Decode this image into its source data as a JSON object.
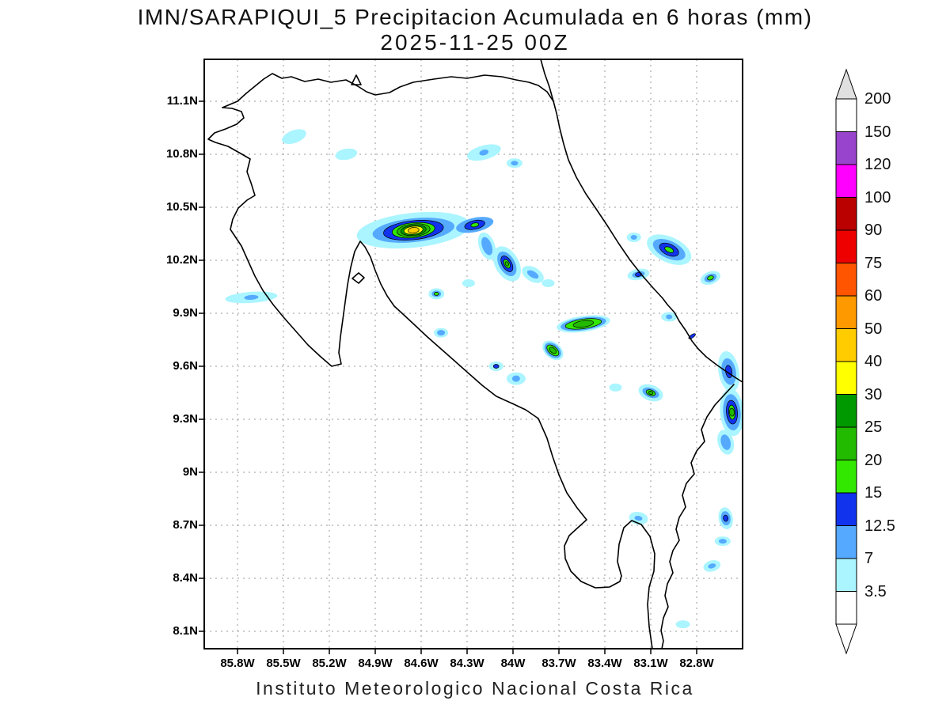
{
  "header": {
    "title": "IMN/SARAPIQUI_5 Precipitacion Acumulada en 6 horas (mm)",
    "subtitle": "2025-11-25 00Z"
  },
  "footer": {
    "text": "Instituto Meteorologico Nacional Costa Rica"
  },
  "chart_data": {
    "type": "heatmap",
    "subtype": "precipitation-contour-map",
    "title": "IMN/SARAPIQUI_5 Precipitacion Acumulada en 6 horas (mm)",
    "valid_time": "2025-11-25 00Z",
    "units": "mm",
    "region": "Costa Rica",
    "grid": "dashed",
    "legend_position": "right-colorbar",
    "axes": {
      "x_ticks": [
        "85.8W",
        "85.5W",
        "85.2W",
        "84.9W",
        "84.6W",
        "84.3W",
        "84W",
        "83.7W",
        "83.4W",
        "83.1W",
        "82.8W"
      ],
      "y_ticks": [
        "11.1N",
        "10.8N",
        "10.5N",
        "10.2N",
        "9.9N",
        "9.6N",
        "9.3N",
        "9N",
        "8.7N",
        "8.4N",
        "8.1N"
      ],
      "xlim": [
        "86.0W",
        "82.5W"
      ],
      "ylim": [
        "8.0N",
        "11.34N"
      ]
    },
    "colorbar": {
      "labels": [
        "200",
        "150",
        "120",
        "100",
        "90",
        "75",
        "60",
        "50",
        "40",
        "30",
        "25",
        "20",
        "15",
        "12.5",
        "7",
        "3.5"
      ],
      "segment_colors": [
        "#ffffff",
        "#9944cc",
        "#ff00ff",
        "#bb0000",
        "#ee0000",
        "#ff5500",
        "#ff9900",
        "#ffcc00",
        "#ffff00",
        "#009900",
        "#22bb00",
        "#33e800",
        "#1133ee",
        "#55aaff",
        "#aaf5ff",
        "#ffffff"
      ],
      "over_color": "#e0e0e0",
      "under_color": "#ffffff"
    },
    "palette": {
      "3.5": "#aaf5ff",
      "7": "#55aaff",
      "12.5": "#1133ee",
      "15": "#33e800",
      "20": "#22bb00",
      "25": "#009900",
      "30": "#ffff00",
      "40": "#ffcc00"
    },
    "max_cell": {
      "lon": 84.65,
      "lat": 10.37,
      "value_range_mm": "40-50"
    },
    "cells": [
      {
        "lon": 85.43,
        "lat": 10.9,
        "rot": -20,
        "layers": [
          [
            3.5,
            16,
            8
          ]
        ]
      },
      {
        "lon": 85.09,
        "lat": 10.8,
        "rot": -10,
        "layers": [
          [
            3.5,
            14,
            7
          ]
        ]
      },
      {
        "lon": 84.19,
        "lat": 10.81,
        "rot": -15,
        "layers": [
          [
            3.5,
            22,
            9
          ],
          [
            7,
            6,
            3.5
          ]
        ]
      },
      {
        "lon": 83.99,
        "lat": 10.75,
        "rot": 0,
        "layers": [
          [
            3.5,
            10,
            6
          ],
          [
            7,
            4.5,
            3
          ]
        ]
      },
      {
        "lon": 84.65,
        "lat": 10.37,
        "rot": -6,
        "layers": [
          [
            3.5,
            72,
            22
          ],
          [
            7,
            52,
            15
          ],
          [
            12.5,
            38,
            12
          ],
          [
            15,
            27,
            9.5
          ],
          [
            20,
            21,
            8
          ],
          [
            25,
            16,
            6.5
          ],
          [
            30,
            12,
            5
          ],
          [
            40,
            7,
            3.5
          ]
        ]
      },
      {
        "lon": 84.25,
        "lat": 10.4,
        "rot": -12,
        "layers": [
          [
            7,
            24,
            9
          ],
          [
            12.5,
            13,
            5.5
          ],
          [
            15,
            5,
            2.5
          ]
        ]
      },
      {
        "lon": 84.17,
        "lat": 10.28,
        "rot": 70,
        "layers": [
          [
            3.5,
            18,
            10
          ],
          [
            7,
            12,
            6
          ]
        ]
      },
      {
        "lon": 84.04,
        "lat": 10.18,
        "rot": 60,
        "layers": [
          [
            3.5,
            24,
            15
          ],
          [
            7,
            17,
            10
          ],
          [
            12.5,
            11,
            6
          ],
          [
            15,
            6,
            3.5
          ],
          [
            20,
            3,
            2
          ]
        ]
      },
      {
        "lon": 83.87,
        "lat": 10.12,
        "rot": 30,
        "layers": [
          [
            3.5,
            15,
            9
          ],
          [
            7,
            8,
            4
          ]
        ]
      },
      {
        "lon": 83.77,
        "lat": 10.07,
        "rot": 0,
        "layers": [
          [
            3.5,
            8,
            5
          ]
        ]
      },
      {
        "lon": 84.29,
        "lat": 10.07,
        "rot": 0,
        "layers": [
          [
            3.5,
            8,
            5
          ]
        ]
      },
      {
        "lon": 84.5,
        "lat": 10.01,
        "rot": 0,
        "layers": [
          [
            3.5,
            10,
            7
          ],
          [
            7,
            6,
            4
          ],
          [
            15,
            3,
            2
          ]
        ]
      },
      {
        "lon": 85.71,
        "lat": 9.99,
        "rot": -4,
        "layers": [
          [
            3.5,
            33,
            7
          ],
          [
            7,
            9,
            3
          ]
        ]
      },
      {
        "lon": 84.47,
        "lat": 9.79,
        "rot": 0,
        "layers": [
          [
            3.5,
            9,
            6
          ],
          [
            7,
            5,
            3.5
          ]
        ]
      },
      {
        "lon": 83.54,
        "lat": 9.84,
        "rot": -8,
        "layers": [
          [
            3.5,
            34,
            10
          ],
          [
            7,
            29,
            8
          ],
          [
            15,
            23,
            6
          ],
          [
            20,
            13,
            4
          ]
        ]
      },
      {
        "lon": 83.74,
        "lat": 9.69,
        "rot": 40,
        "layers": [
          [
            3.5,
            15,
            10
          ],
          [
            7,
            12,
            8
          ],
          [
            15,
            9,
            5
          ],
          [
            20,
            5,
            3
          ]
        ]
      },
      {
        "lon": 84.11,
        "lat": 9.6,
        "rot": 0,
        "layers": [
          [
            3.5,
            9,
            6
          ],
          [
            12.5,
            3.5,
            2.5
          ]
        ]
      },
      {
        "lon": 83.98,
        "lat": 9.53,
        "rot": 0,
        "layers": [
          [
            3.5,
            12,
            8
          ],
          [
            7,
            5,
            4
          ]
        ]
      },
      {
        "lon": 82.98,
        "lat": 10.26,
        "rot": 25,
        "layers": [
          [
            3.5,
            30,
            16
          ],
          [
            7,
            22,
            11
          ],
          [
            12.5,
            13,
            7
          ],
          [
            15,
            6,
            3
          ]
        ]
      },
      {
        "lon": 83.21,
        "lat": 10.33,
        "rot": 0,
        "layers": [
          [
            3.5,
            9,
            6
          ],
          [
            7,
            4,
            3
          ]
        ]
      },
      {
        "lon": 83.18,
        "lat": 10.12,
        "rot": -10,
        "layers": [
          [
            3.5,
            14,
            7
          ],
          [
            7,
            8,
            4
          ],
          [
            12.5,
            4,
            2.5
          ]
        ]
      },
      {
        "lon": 82.71,
        "lat": 10.1,
        "rot": -20,
        "layers": [
          [
            3.5,
            13,
            8
          ],
          [
            7,
            8,
            5
          ],
          [
            15,
            4,
            2.5
          ]
        ]
      },
      {
        "lon": 82.98,
        "lat": 9.88,
        "rot": 0,
        "layers": [
          [
            3.5,
            10,
            6
          ],
          [
            7,
            4,
            3
          ]
        ]
      },
      {
        "lon": 82.83,
        "lat": 9.77,
        "rot": -35,
        "layers": [
          [
            12.5,
            5,
            2
          ]
        ]
      },
      {
        "lon": 82.59,
        "lat": 9.57,
        "rot": 80,
        "layers": [
          [
            3.5,
            26,
            13
          ],
          [
            7,
            17,
            9
          ],
          [
            12.5,
            8,
            4
          ]
        ]
      },
      {
        "lon": 82.57,
        "lat": 9.34,
        "rot": 85,
        "layers": [
          [
            3.5,
            30,
            15
          ],
          [
            7,
            23,
            11
          ],
          [
            12.5,
            15,
            7
          ],
          [
            15,
            9,
            4
          ],
          [
            20,
            5,
            3
          ]
        ]
      },
      {
        "lon": 82.61,
        "lat": 9.17,
        "rot": 75,
        "layers": [
          [
            3.5,
            16,
            10
          ],
          [
            7,
            10,
            6
          ]
        ]
      },
      {
        "lon": 83.1,
        "lat": 9.45,
        "rot": 20,
        "layers": [
          [
            3.5,
            16,
            10
          ],
          [
            7,
            11,
            6
          ],
          [
            15,
            6,
            3.5
          ],
          [
            20,
            3,
            2
          ]
        ]
      },
      {
        "lon": 83.33,
        "lat": 9.48,
        "rot": 0,
        "layers": [
          [
            3.5,
            8,
            5
          ]
        ]
      },
      {
        "lon": 83.18,
        "lat": 8.74,
        "rot": 10,
        "layers": [
          [
            3.5,
            12,
            8
          ],
          [
            7,
            5,
            3
          ]
        ]
      },
      {
        "lon": 82.61,
        "lat": 8.74,
        "rot": 80,
        "layers": [
          [
            3.5,
            14,
            9
          ],
          [
            7,
            9,
            6
          ],
          [
            12.5,
            4,
            3
          ]
        ]
      },
      {
        "lon": 82.63,
        "lat": 8.61,
        "rot": 0,
        "layers": [
          [
            3.5,
            10,
            6
          ],
          [
            7,
            5,
            3
          ]
        ]
      },
      {
        "lon": 82.7,
        "lat": 8.47,
        "rot": -15,
        "layers": [
          [
            3.5,
            11,
            7
          ],
          [
            7,
            5,
            3
          ]
        ]
      },
      {
        "lon": 82.89,
        "lat": 8.14,
        "rot": 0,
        "layers": [
          [
            3.5,
            9,
            5
          ]
        ]
      }
    ],
    "map_outline": [
      "M 281,136 L 300,128 L 311,118 L 333,100 L 344,93 L 356,99 L 368,97 L 385,103 L 402,100 L 418,104 L 437,101 L 452,109 L 463,116 L 474,120 L 492,117 L 505,110 L 522,104 L 548,100 L 570,97 L 590,99 L 612,95 L 634,97 L 652,101 L 668,104 L 680,108 L 691,116 L 699,128 L 703,143 L 707,162 L 712,182 L 718,202 L 728,224 L 740,245 L 753,264 L 767,285 L 781,307 L 796,329 L 811,348 L 825,364 L 837,377 L 843,385 L 852,395 L 858,406 L 867,419 L 874,431 L 882,441 L 892,451 L 905,461 L 918,470 L 930,478 L 938,483",
      "M 683,75 L 688,93 L 694,110 L 699,128",
      "M 927,486 L 915,499 L 903,512 L 893,527 L 886,543 L 890,558 L 880,570 L 873,585 L 877,599 L 867,611 L 862,626 L 866,641 L 858,654 L 854,669 L 858,683 L 850,696 L 846,710 L 850,724 L 843,738 L 840,753 L 844,767 L 838,781 L 835,797 L 838,810 L 836,820",
      "M 824,820 L 820,792 L 818,764 L 820,742 L 826,722 L 827,700 L 821,678 L 810,663 L 798,658 L 788,667 L 782,688 L 780,710 L 785,728 L 783,735 L 770,742 L 752,743 L 734,735 L 721,722 L 714,706 L 713,690 L 719,677 L 731,666 L 741,657 L 729,642 L 716,623 L 706,600 L 698,577 L 691,554 L 680,529 L 664,518 L 647,510 L 627,501 L 609,487 L 592,472 L 574,456 L 557,441 L 540,426 L 524,411 L 509,397 L 498,387 L 489,374 L 481,359 L 474,342 L 468,325 L 461,312 L 455,305 L 448,318 L 443,338 L 439,360 L 436,382 L 433,404 L 430,426 L 428,446 L 431,460 L 419,463 L 404,450 L 389,436 L 374,419 L 359,402 L 345,385 L 332,367 L 322,349 L 313,329 L 305,311 L 297,299 L 291,290 L 294,277 L 301,263 L 312,253 L 322,247 L 317,231 L 312,217 L 316,201 L 304,194 L 288,185 L 272,180 L 263,176 L 271,168 L 285,163 L 299,157 L 308,149 L 305,141 L 293,137 L 281,136",
      "M 445,352 L 453,345 L 460,351 L 453,358 Z",
      "M 444,107 L 456,107 L 450,95 Z"
    ]
  }
}
